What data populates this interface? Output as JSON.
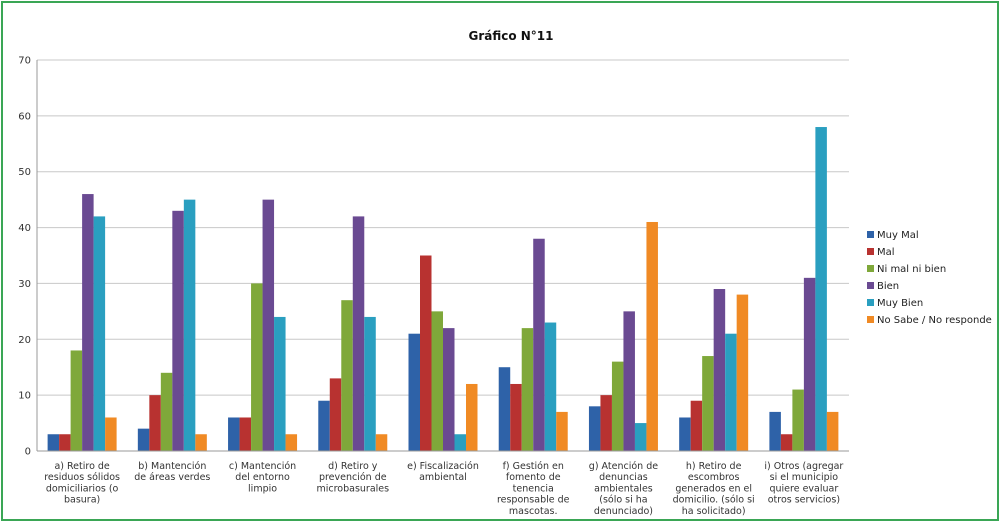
{
  "chart_data": {
    "type": "bar",
    "title": "Gráfico N°11",
    "xlabel": "",
    "ylabel": "",
    "ylim": [
      0,
      70
    ],
    "yticks": [
      0,
      10,
      20,
      30,
      40,
      50,
      60,
      70
    ],
    "grid": true,
    "legend_position": "right",
    "categories": [
      [
        "a) Retiro de",
        "residuos sólidos",
        "domiciliarios (o",
        "basura)"
      ],
      [
        "b) Mantención",
        "de áreas verdes"
      ],
      [
        "c) Mantención",
        "del entorno",
        "limpio"
      ],
      [
        "d) Retiro y",
        "prevención de",
        "microbasurales"
      ],
      [
        "e) Fiscalización",
        "ambiental"
      ],
      [
        "f) Gestión en",
        "fomento de",
        "tenencia",
        "responsable de",
        "mascotas."
      ],
      [
        "g) Atención de",
        "denuncias",
        "ambientales",
        "(sólo si ha",
        "denunciado)"
      ],
      [
        "h) Retiro de",
        "escombros",
        "generados en el",
        "domicilio. (sólo si",
        "ha solicitado)"
      ],
      [
        "i) Otros (agregar",
        "si el municipio",
        "quiere evaluar",
        "otros servicios)"
      ]
    ],
    "series": [
      {
        "name": "Muy Mal",
        "color": "#2e62a8",
        "values": [
          3,
          4,
          6,
          9,
          21,
          15,
          8,
          6,
          7
        ]
      },
      {
        "name": "Mal",
        "color": "#b83230",
        "values": [
          3,
          10,
          6,
          13,
          35,
          12,
          10,
          9,
          3
        ]
      },
      {
        "name": "Ni mal ni bien",
        "color": "#7fa83a",
        "values": [
          18,
          14,
          30,
          27,
          25,
          22,
          16,
          17,
          11
        ]
      },
      {
        "name": "Bien",
        "color": "#6a4a92",
        "values": [
          46,
          43,
          45,
          42,
          22,
          38,
          25,
          29,
          31
        ]
      },
      {
        "name": "Muy Bien",
        "color": "#2a9fc0",
        "values": [
          42,
          45,
          24,
          24,
          3,
          23,
          5,
          21,
          58
        ]
      },
      {
        "name": "No Sabe / No responde",
        "color": "#f08a24",
        "values": [
          6,
          3,
          3,
          3,
          12,
          7,
          41,
          28,
          7
        ]
      }
    ]
  }
}
